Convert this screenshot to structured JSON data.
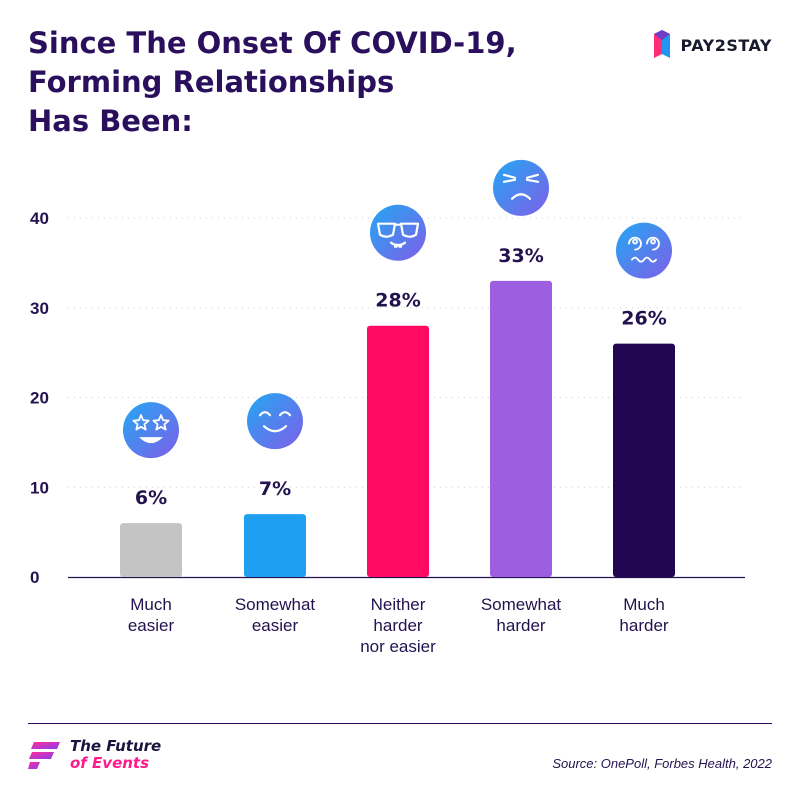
{
  "title_lines": [
    "Since The Onset Of COVID-19,",
    "Forming Relationships",
    "Has Been:"
  ],
  "brand": {
    "name": "PAY2STAY",
    "icon": "pay2stay-logo-icon",
    "colors": [
      "#ff2d78",
      "#2196f3",
      "#6f3cc3"
    ]
  },
  "chart_data": {
    "type": "bar",
    "title": "Since The Onset Of COVID-19, Forming Relationships Has Been:",
    "categories": [
      [
        "Much",
        "easier"
      ],
      [
        "Somewhat",
        "easier"
      ],
      [
        "Neither",
        "harder",
        "nor easier"
      ],
      [
        "Somewhat",
        "harder"
      ],
      [
        "Much",
        "harder"
      ]
    ],
    "values": [
      6,
      7,
      28,
      33,
      26
    ],
    "value_labels": [
      "6%",
      "7%",
      "28%",
      "33%",
      "26%"
    ],
    "colors": [
      "#c4c4c4",
      "#1e9ff2",
      "#ff0a62",
      "#9d5fdf",
      "#230651"
    ],
    "icons": [
      "star-eyes-face-icon",
      "smiling-face-icon",
      "nerd-face-icon",
      "frowning-face-icon",
      "dizzy-face-icon"
    ],
    "icon_gradient": [
      "#22a8f3",
      "#7f5ee8"
    ],
    "ylim": [
      0,
      40
    ],
    "yticks": [
      0,
      10,
      20,
      30,
      40
    ],
    "grid": true,
    "xlabel": "",
    "ylabel": ""
  },
  "footer": {
    "logo_line1": "The Future",
    "logo_line2": "of Events",
    "source": "Source: OnePoll, Forbes Health, 2022"
  }
}
